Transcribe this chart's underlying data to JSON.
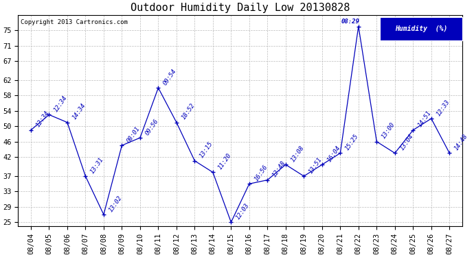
{
  "title": "Outdoor Humidity Daily Low 20130828",
  "copyright": "Copyright 2013 Cartronics.com",
  "legend_label": "Humidity  (%)",
  "x_labels": [
    "08/04",
    "08/05",
    "08/06",
    "08/07",
    "08/08",
    "08/09",
    "08/10",
    "08/11",
    "08/12",
    "08/13",
    "08/14",
    "08/15",
    "08/16",
    "08/17",
    "08/18",
    "08/19",
    "08/20",
    "08/21",
    "08/22",
    "08/23",
    "08/24",
    "08/25",
    "08/26",
    "08/27"
  ],
  "y_values": [
    49,
    53,
    51,
    37,
    27,
    45,
    47,
    60,
    51,
    41,
    38,
    25,
    35,
    36,
    40,
    37,
    40,
    43,
    76,
    46,
    43,
    49,
    52,
    43
  ],
  "point_labels": [
    "12:34",
    "12:34",
    "14:34",
    "13:31",
    "13:02",
    "08:01",
    "09:56",
    "09:54",
    "18:52",
    "13:15",
    "11:20",
    "12:03",
    "16:56",
    "12:48",
    "13:08",
    "13:51",
    "16:04",
    "15:25",
    "08:29",
    "13:00",
    "13:04",
    "14:51",
    "12:33",
    "14:48"
  ],
  "line_color": "#0000bb",
  "marker_color": "#0000bb",
  "bg_color": "#ffffff",
  "grid_color": "#bbbbbb",
  "ylim": [
    24,
    79
  ],
  "yticks": [
    25,
    29,
    33,
    37,
    42,
    46,
    50,
    54,
    58,
    62,
    67,
    71,
    75
  ],
  "title_fontsize": 11,
  "label_fontsize": 6.5,
  "tick_fontsize": 7.5,
  "copyright_fontsize": 6.5,
  "legend_bg": "#0000bb",
  "legend_text_color": "#ffffff",
  "figwidth": 6.9,
  "figheight": 3.75,
  "dpi": 100
}
